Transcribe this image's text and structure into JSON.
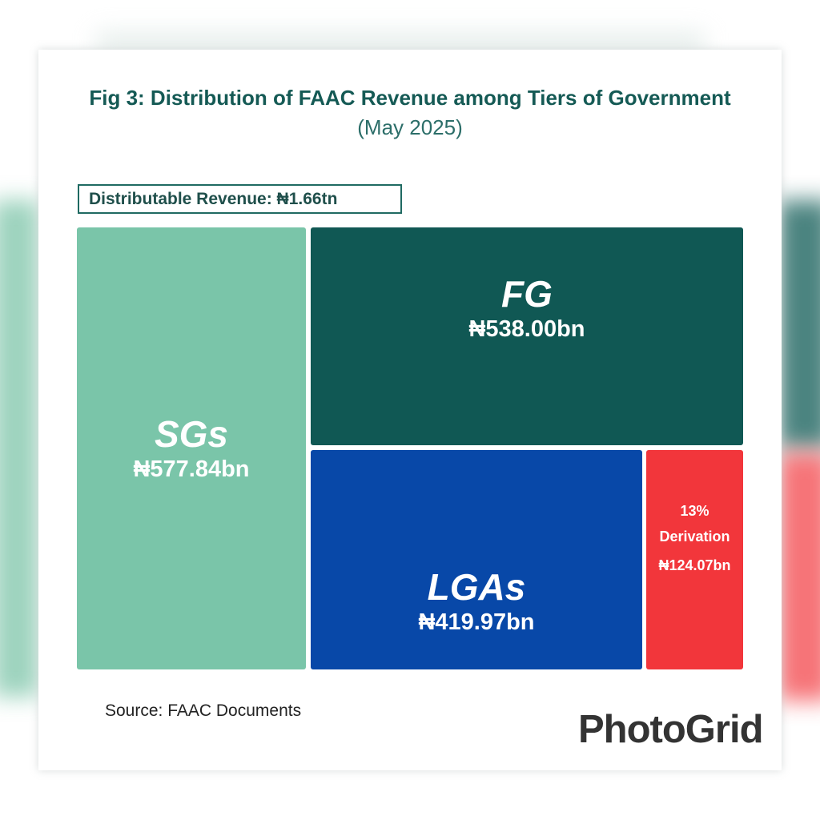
{
  "figure": {
    "title_bold": "Fig 3: Distribution of FAAC Revenue among Tiers of Government",
    "title_light": "(May 2025)",
    "total_label": "Distributable Revenue: ₦1.66tn",
    "source": "Source: FAAC Documents"
  },
  "watermark": "PhotoGrid",
  "chart_data": {
    "type": "treemap",
    "title": "Fig 3: Distribution of FAAC Revenue among Tiers of Government (May 2025)",
    "total": {
      "label": "Distributable Revenue",
      "value": 1.66,
      "unit": "tn",
      "display": "₦1.66tn"
    },
    "unit": "₦ bn",
    "items": [
      {
        "name": "SGs",
        "value": 577.84,
        "display": "₦577.84bn",
        "color": "#7ac5a9"
      },
      {
        "name": "FG",
        "value": 538.0,
        "display": "₦538.00bn",
        "color": "#105854"
      },
      {
        "name": "LGAs",
        "value": 419.97,
        "display": "₦419.97bn",
        "color": "#0848a8"
      },
      {
        "name_line1": "13%",
        "name_line2": "Derivation",
        "name": "13% Derivation",
        "value": 124.07,
        "display": "₦124.07bn",
        "color": "#f2363b"
      }
    ]
  }
}
